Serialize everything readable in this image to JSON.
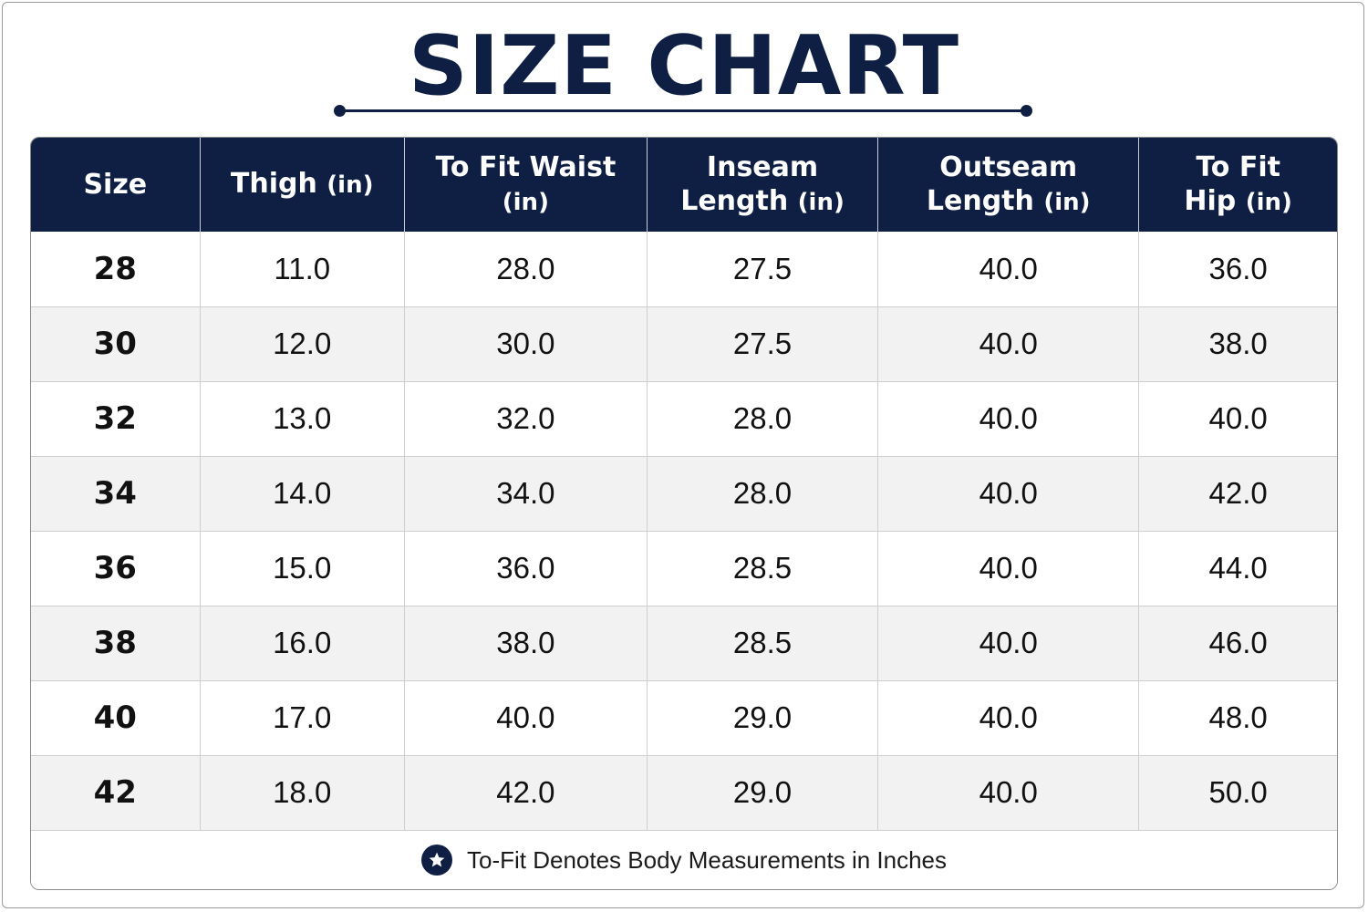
{
  "title": "SIZE CHART",
  "colors": {
    "navy": "#0f1f44",
    "row_alt": "#f2f2f2",
    "white": "#ffffff"
  },
  "table": {
    "columns": [
      {
        "label": "Size",
        "unit": ""
      },
      {
        "label": "Thigh",
        "unit": "(in)"
      },
      {
        "label": "To Fit Waist",
        "unit": "(in)"
      },
      {
        "label": "Inseam Length",
        "unit": "(in)"
      },
      {
        "label": "Outseam Length",
        "unit": "(in)"
      },
      {
        "label": "To Fit Hip",
        "unit": "(in)"
      }
    ],
    "rows": [
      [
        "28",
        "11.0",
        "28.0",
        "27.5",
        "40.0",
        "36.0"
      ],
      [
        "30",
        "12.0",
        "30.0",
        "27.5",
        "40.0",
        "38.0"
      ],
      [
        "32",
        "13.0",
        "32.0",
        "28.0",
        "40.0",
        "40.0"
      ],
      [
        "34",
        "14.0",
        "34.0",
        "28.0",
        "40.0",
        "42.0"
      ],
      [
        "36",
        "15.0",
        "36.0",
        "28.5",
        "40.0",
        "44.0"
      ],
      [
        "38",
        "16.0",
        "38.0",
        "28.5",
        "40.0",
        "46.0"
      ],
      [
        "40",
        "17.0",
        "40.0",
        "29.0",
        "40.0",
        "48.0"
      ],
      [
        "42",
        "18.0",
        "42.0",
        "29.0",
        "40.0",
        "50.0"
      ]
    ]
  },
  "footer": {
    "icon": "star-icon",
    "note": "To-Fit Denotes Body Measurements in Inches"
  }
}
